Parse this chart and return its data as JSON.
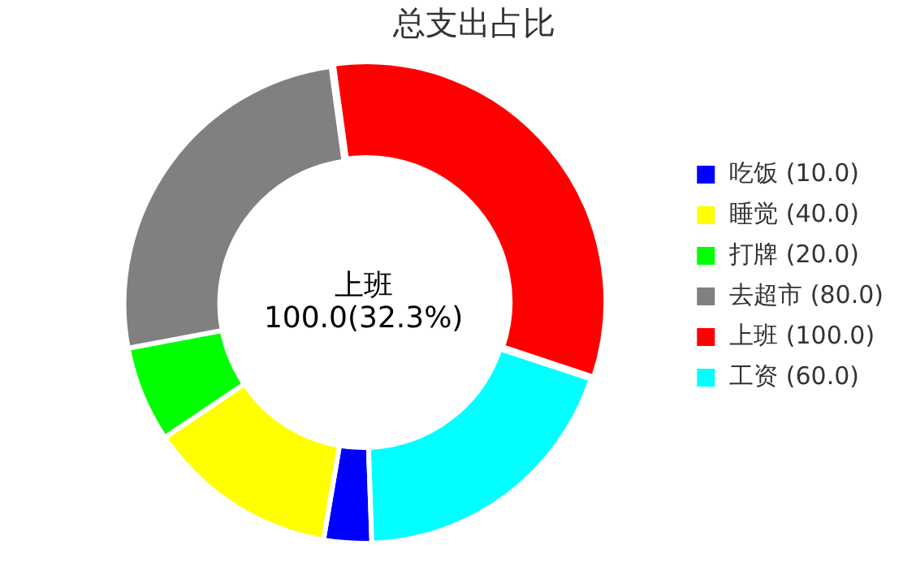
{
  "chart_data": {
    "type": "donut",
    "title": "总支出占比",
    "categories": [
      "吃饭 (10.0)",
      "睡觉 (40.0)",
      "打牌 (20.0)",
      "去超市 (80.0)",
      "上班 (100.0)",
      "工资 (60.0)"
    ],
    "values": [
      10,
      40,
      20,
      80,
      100,
      60
    ],
    "colors": [
      "#0000ff",
      "#ffff00",
      "#00ff00",
      "#808080",
      "#ff0000",
      "#00ffff"
    ],
    "legend": "right",
    "annotations": [
      "上班",
      "100.0(32.3%)"
    ]
  }
}
